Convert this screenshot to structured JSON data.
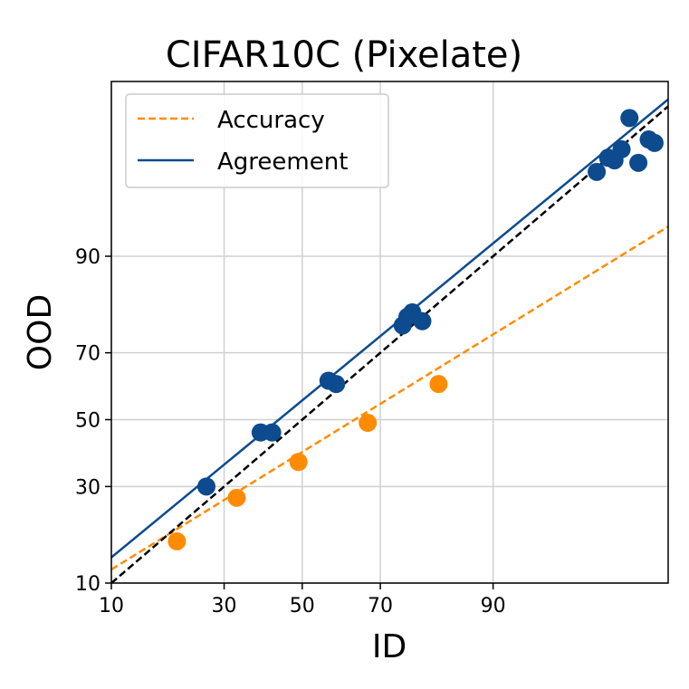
{
  "chart_data": {
    "type": "scatter",
    "title": "CIFAR10C (Pixelate)",
    "xlabel": "ID",
    "ylabel": "OOD",
    "scale": "probit",
    "xticks": [
      10,
      30,
      50,
      70,
      90
    ],
    "yticks": [
      10,
      30,
      50,
      70,
      90
    ],
    "xlim": [
      10,
      99.3
    ],
    "ylim": [
      10,
      99.6
    ],
    "grid": true,
    "legend_position": "top-left",
    "series": [
      {
        "name": "Accuracy",
        "color": "#ff8c00",
        "line_style": "dashed",
        "points": [
          {
            "x": 20,
            "y": 17
          },
          {
            "x": 33,
            "y": 27
          },
          {
            "x": 49,
            "y": 37
          },
          {
            "x": 67,
            "y": 49
          },
          {
            "x": 82,
            "y": 61
          }
        ],
        "fit": {
          "x": [
            10,
            99.3
          ],
          "y": [
            12,
            93.5
          ]
        }
      },
      {
        "name": "Agreement",
        "color": "#0d4a8e",
        "line_style": "solid",
        "points": [
          {
            "x": 26,
            "y": 30
          },
          {
            "x": 39,
            "y": 46
          },
          {
            "x": 42,
            "y": 46
          },
          {
            "x": 57,
            "y": 62
          },
          {
            "x": 59,
            "y": 61
          },
          {
            "x": 75,
            "y": 77
          },
          {
            "x": 76,
            "y": 79
          },
          {
            "x": 77,
            "y": 80
          },
          {
            "x": 79,
            "y": 78
          },
          {
            "x": 97.6,
            "y": 97.4
          },
          {
            "x": 98.0,
            "y": 98.0
          },
          {
            "x": 98.2,
            "y": 97.9
          },
          {
            "x": 98.4,
            "y": 98.3
          },
          {
            "x": 98.6,
            "y": 99.1
          },
          {
            "x": 98.8,
            "y": 97.8
          },
          {
            "x": 99.0,
            "y": 98.6
          },
          {
            "x": 99.1,
            "y": 98.5
          }
        ],
        "fit": {
          "x": [
            10,
            99.3
          ],
          "y": [
            14,
            99.4
          ]
        }
      }
    ],
    "reference_line": {
      "color": "#000000",
      "line_style": "dashed",
      "x": [
        10,
        99.3
      ],
      "y": [
        10,
        99.3
      ]
    }
  }
}
